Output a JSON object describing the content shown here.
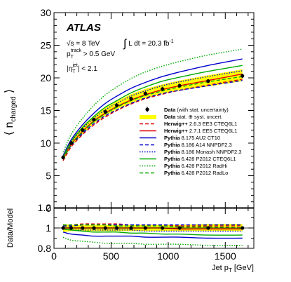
{
  "chart_data": [
    {
      "type": "line",
      "panel": "main",
      "ylabel": "⟨ n_charged ⟩",
      "ylim": [
        0,
        30
      ],
      "y_ticks": [
        "0",
        "5",
        "10",
        "15",
        "20",
        "25",
        "30"
      ],
      "xlim": [
        0,
        1750
      ],
      "grid": false,
      "legend_position": "bottom-right",
      "annotations": {
        "experiment": "ATLAS",
        "energy": "√s = 8 TeV",
        "luminosity": "∫ L dt = 20.3 fb⁻¹",
        "track_cut": "p_T^track > 0.5 GeV",
        "eta_cut": "|η_T^jet| < 2.1"
      },
      "x": [
        80,
        150,
        250,
        350,
        450,
        550,
        675,
        800,
        950,
        1100,
        1350,
        1650
      ],
      "data": {
        "name": "Data",
        "note": "(with stat. uncertainty)",
        "values": [
          7.8,
          10.0,
          12.0,
          13.6,
          14.8,
          15.8,
          16.8,
          17.6,
          18.3,
          18.8,
          19.5,
          20.3
        ],
        "band_name": "Data",
        "band_note": "stat. ⊕ syst. uncert.",
        "band_lower": [
          7.3,
          9.5,
          11.4,
          13.0,
          14.2,
          15.2,
          16.1,
          16.9,
          17.6,
          18.1,
          18.7,
          19.5
        ],
        "band_upper": [
          8.3,
          10.5,
          12.6,
          14.2,
          15.4,
          16.4,
          17.5,
          18.3,
          19.0,
          19.6,
          20.4,
          21.3
        ]
      },
      "series": [
        {
          "prefix": "Herwig++",
          "name": " 2.6.3 EE3 CTEQ6L1",
          "color": "#e00000",
          "dash": "dashed",
          "values": [
            7.3,
            9.4,
            11.3,
            12.8,
            14.0,
            15.0,
            16.0,
            16.8,
            17.5,
            18.1,
            18.9,
            19.8
          ]
        },
        {
          "prefix": "Herwig++",
          "name": " 2.7.1 EE5 CTEQ6L1",
          "color": "#e00000",
          "dash": "solid",
          "values": [
            7.7,
            9.8,
            11.8,
            13.4,
            14.6,
            15.6,
            16.6,
            17.4,
            18.2,
            18.8,
            19.6,
            20.6
          ]
        },
        {
          "prefix": "Pythia",
          "name": " 8.175 AU2 CT10",
          "color": "#0000cc",
          "dash": "solid",
          "values": [
            8.1,
            10.5,
            12.8,
            14.6,
            16.1,
            17.2,
            18.4,
            19.3,
            20.2,
            20.9,
            21.9,
            22.9
          ]
        },
        {
          "prefix": "Pythia",
          "name": " 8.186 A14 NNPDF2.3",
          "color": "#0000cc",
          "dash": "dashed",
          "values": [
            7.6,
            9.6,
            11.5,
            13.0,
            14.2,
            15.1,
            16.1,
            16.9,
            17.6,
            18.1,
            18.8,
            19.6
          ]
        },
        {
          "prefix": "Pythia",
          "name": " 8.186 Monash NNPDF2.3",
          "color": "#0000cc",
          "dash": "dotted",
          "values": [
            7.9,
            10.1,
            12.2,
            13.8,
            15.1,
            16.1,
            17.2,
            18.0,
            18.8,
            19.4,
            20.2,
            21.1
          ]
        },
        {
          "prefix": "Pythia",
          "name": " 6.428 P2012 CTEQ6L1",
          "color": "#00aa00",
          "dash": "solid",
          "values": [
            7.9,
            10.2,
            12.4,
            14.1,
            15.5,
            16.5,
            17.7,
            18.6,
            19.5,
            20.1,
            21.0,
            21.9
          ]
        },
        {
          "prefix": "Pythia",
          "name": " 6.428 P2012 RadHi",
          "color": "#00aa00",
          "dash": "dotted",
          "values": [
            8.6,
            11.3,
            13.8,
            15.8,
            17.4,
            18.6,
            19.9,
            20.9,
            21.8,
            22.5,
            23.5,
            24.4
          ]
        },
        {
          "prefix": "Pythia",
          "name": " 6.428 P2012 RadLo",
          "color": "#00aa00",
          "dash": "dashed",
          "values": [
            7.6,
            9.7,
            11.7,
            13.3,
            14.5,
            15.5,
            16.5,
            17.3,
            18.0,
            18.6,
            19.4,
            20.2
          ]
        }
      ]
    },
    {
      "type": "line",
      "panel": "ratio",
      "ylabel": "Data/Model",
      "xlabel": "Jet p_T [GeV]",
      "ylim": [
        0.8,
        1.2
      ],
      "y_ticks": [
        "0.8",
        "1",
        "1.2"
      ],
      "xlim": [
        0,
        1750
      ],
      "x_ticks": [
        "0",
        "500",
        "1000",
        "1500"
      ],
      "x": [
        80,
        150,
        250,
        350,
        450,
        550,
        675,
        800,
        950,
        1100,
        1350,
        1650
      ],
      "data_ratio": [
        1.0,
        1.0,
        1.0,
        1.0,
        1.0,
        1.0,
        1.0,
        1.0,
        1.0,
        1.0,
        1.0,
        1.0
      ],
      "band_lower": [
        0.96,
        0.97,
        0.97,
        0.97,
        0.97,
        0.97,
        0.97,
        0.97,
        0.97,
        0.97,
        0.97,
        0.97
      ],
      "band_upper": [
        1.04,
        1.03,
        1.03,
        1.03,
        1.03,
        1.03,
        1.03,
        1.03,
        1.03,
        1.03,
        1.04,
        1.04
      ],
      "series": [
        {
          "name": "Herwig++ 2.6.3 EE3 CTEQ6L1",
          "color": "#e00000",
          "dash": "dashed",
          "values": [
            1.03,
            1.03,
            1.04,
            1.04,
            1.04,
            1.04,
            1.03,
            1.03,
            1.03,
            1.02,
            1.02,
            1.02
          ]
        },
        {
          "name": "Herwig++ 2.7.1 EE5 CTEQ6L1",
          "color": "#e00000",
          "dash": "solid",
          "values": [
            1.0,
            1.0,
            1.0,
            1.0,
            1.0,
            1.0,
            1.0,
            1.0,
            1.0,
            0.99,
            0.99,
            0.99
          ]
        },
        {
          "name": "Pythia 8.175 AU2 CT10",
          "color": "#0000cc",
          "dash": "solid",
          "values": [
            0.96,
            0.94,
            0.93,
            0.92,
            0.92,
            0.92,
            0.92,
            0.91,
            0.91,
            0.91,
            0.9,
            0.9
          ]
        },
        {
          "name": "Pythia 8.186 A14 NNPDF2.3",
          "color": "#0000cc",
          "dash": "dashed",
          "values": [
            1.02,
            1.02,
            1.03,
            1.03,
            1.03,
            1.03,
            1.03,
            1.03,
            1.03,
            1.03,
            1.03,
            1.03
          ]
        },
        {
          "name": "Pythia 8.186 Monash NNPDF2.3",
          "color": "#0000cc",
          "dash": "dotted",
          "values": [
            0.99,
            0.98,
            0.98,
            0.98,
            0.98,
            0.98,
            0.98,
            0.97,
            0.97,
            0.97,
            0.97,
            0.97
          ]
        },
        {
          "name": "Pythia 6.428 P2012 CTEQ6L1",
          "color": "#00aa00",
          "dash": "solid",
          "values": [
            0.99,
            0.98,
            0.97,
            0.96,
            0.96,
            0.96,
            0.95,
            0.95,
            0.94,
            0.94,
            0.93,
            0.93
          ]
        },
        {
          "name": "Pythia 6.428 P2012 RadHi",
          "color": "#00aa00",
          "dash": "dotted",
          "values": [
            0.91,
            0.88,
            0.87,
            0.86,
            0.85,
            0.85,
            0.85,
            0.84,
            0.84,
            0.84,
            0.83,
            0.83
          ]
        },
        {
          "name": "Pythia 6.428 P2012 RadLo",
          "color": "#00aa00",
          "dash": "dashed",
          "values": [
            1.03,
            1.03,
            1.03,
            1.03,
            1.03,
            1.02,
            1.02,
            1.02,
            1.02,
            1.01,
            1.01,
            1.0
          ]
        }
      ]
    }
  ]
}
